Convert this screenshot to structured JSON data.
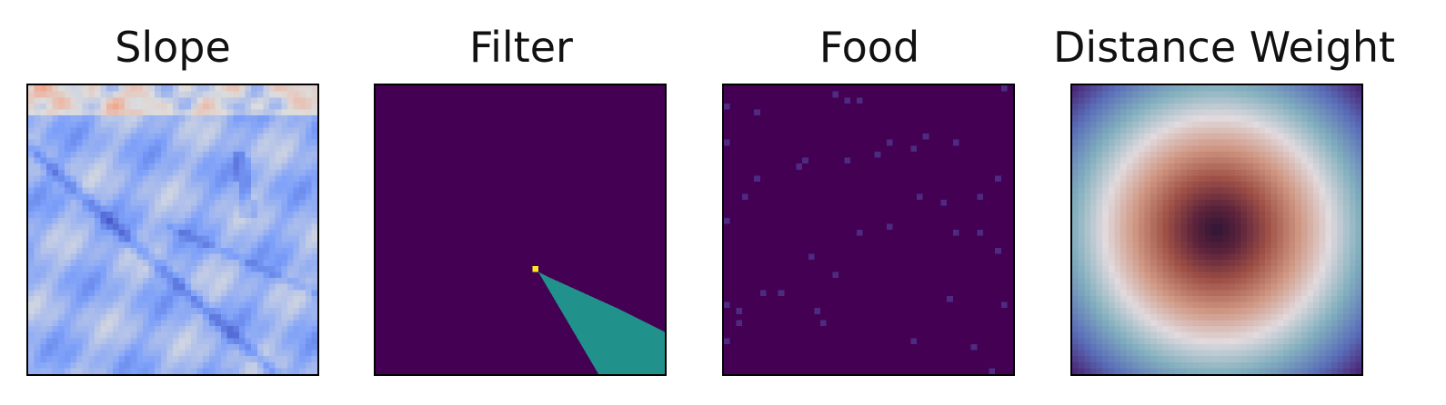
{
  "chart_data": [
    {
      "type": "heatmap",
      "title": "Slope",
      "colormap": "coolwarm",
      "grid": false,
      "ticks": false
    },
    {
      "type": "heatmap",
      "title": "Filter",
      "colormap": "viridis",
      "grid": false,
      "ticks": false,
      "values": {
        "background": 0,
        "region": 0.5,
        "point": 1
      },
      "region_polygon": [
        [
          27,
          31
        ],
        [
          29,
          32
        ],
        [
          40,
          37
        ],
        [
          44,
          39
        ],
        [
          48,
          41
        ],
        [
          48,
          48
        ],
        [
          37,
          48
        ]
      ],
      "point": [
        27,
        31
      ]
    },
    {
      "type": "heatmap",
      "title": "Food",
      "colormap": "viridis",
      "grid": false,
      "ticks": false,
      "background": 0,
      "sparse_cells": [
        [
          18,
          1
        ],
        [
          20,
          2
        ],
        [
          22,
          2
        ],
        [
          46,
          0
        ],
        [
          0,
          3
        ],
        [
          5,
          4
        ],
        [
          0,
          9
        ],
        [
          33,
          8
        ],
        [
          27,
          9
        ],
        [
          20,
          12
        ],
        [
          25,
          11
        ],
        [
          38,
          9
        ],
        [
          31,
          10
        ],
        [
          12,
          13
        ],
        [
          13,
          12
        ],
        [
          5,
          15
        ],
        [
          45,
          15
        ],
        [
          42,
          18
        ],
        [
          36,
          19
        ],
        [
          32,
          18
        ],
        [
          3,
          18
        ],
        [
          0,
          22
        ],
        [
          27,
          23
        ],
        [
          38,
          24
        ],
        [
          22,
          24
        ],
        [
          42,
          24
        ],
        [
          45,
          27
        ],
        [
          14,
          28
        ],
        [
          18,
          31
        ],
        [
          6,
          34
        ],
        [
          9,
          34
        ],
        [
          37,
          35
        ],
        [
          15,
          37
        ],
        [
          0,
          36
        ],
        [
          2,
          37
        ],
        [
          46,
          36
        ],
        [
          16,
          39
        ],
        [
          2,
          39
        ],
        [
          31,
          42
        ],
        [
          41,
          43
        ],
        [
          44,
          47
        ],
        [
          0,
          42
        ]
      ]
    },
    {
      "type": "heatmap",
      "title": "Distance Weight",
      "colormap": "twilight_shifted",
      "grid": false,
      "ticks": false,
      "center": [
        24,
        24
      ]
    }
  ]
}
